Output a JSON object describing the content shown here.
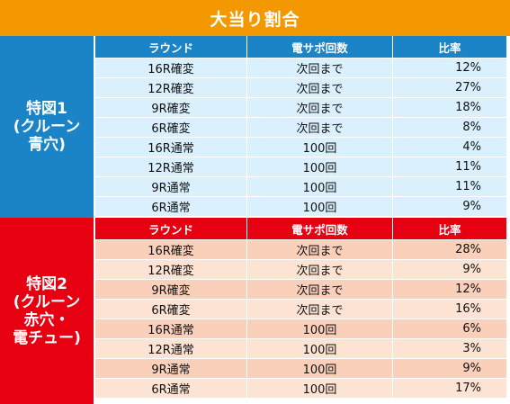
{
  "title": "大当り割合",
  "headers": {
    "round": "ラウンド",
    "support": "電サポ回数",
    "ratio": "比率"
  },
  "sections": [
    {
      "label": "特図1\n(クルーン\n青穴)",
      "rows": [
        {
          "round": "16R確変",
          "support": "次回まで",
          "ratio": "12%"
        },
        {
          "round": "12R確変",
          "support": "次回まで",
          "ratio": "27%"
        },
        {
          "round": "9R確変",
          "support": "次回まで",
          "ratio": "18%"
        },
        {
          "round": "6R確変",
          "support": "次回まで",
          "ratio": "8%"
        },
        {
          "round": "16R通常",
          "support": "100回",
          "ratio": "4%"
        },
        {
          "round": "12R通常",
          "support": "100回",
          "ratio": "11%"
        },
        {
          "round": "9R通常",
          "support": "100回",
          "ratio": "11%"
        },
        {
          "round": "6R通常",
          "support": "100回",
          "ratio": "9%"
        }
      ]
    },
    {
      "label": "特図2\n(クルーン\n赤穴・\n電チュー)",
      "rows": [
        {
          "round": "16R確変",
          "support": "次回まで",
          "ratio": "28%"
        },
        {
          "round": "12R確変",
          "support": "次回まで",
          "ratio": "9%"
        },
        {
          "round": "9R確変",
          "support": "次回まで",
          "ratio": "12%"
        },
        {
          "round": "6R確変",
          "support": "次回まで",
          "ratio": "16%"
        },
        {
          "round": "16R通常",
          "support": "100回",
          "ratio": "6%"
        },
        {
          "round": "12R通常",
          "support": "100回",
          "ratio": "3%"
        },
        {
          "round": "9R通常",
          "support": "100回",
          "ratio": "9%"
        },
        {
          "round": "6R通常",
          "support": "100回",
          "ratio": "17%"
        }
      ]
    }
  ]
}
